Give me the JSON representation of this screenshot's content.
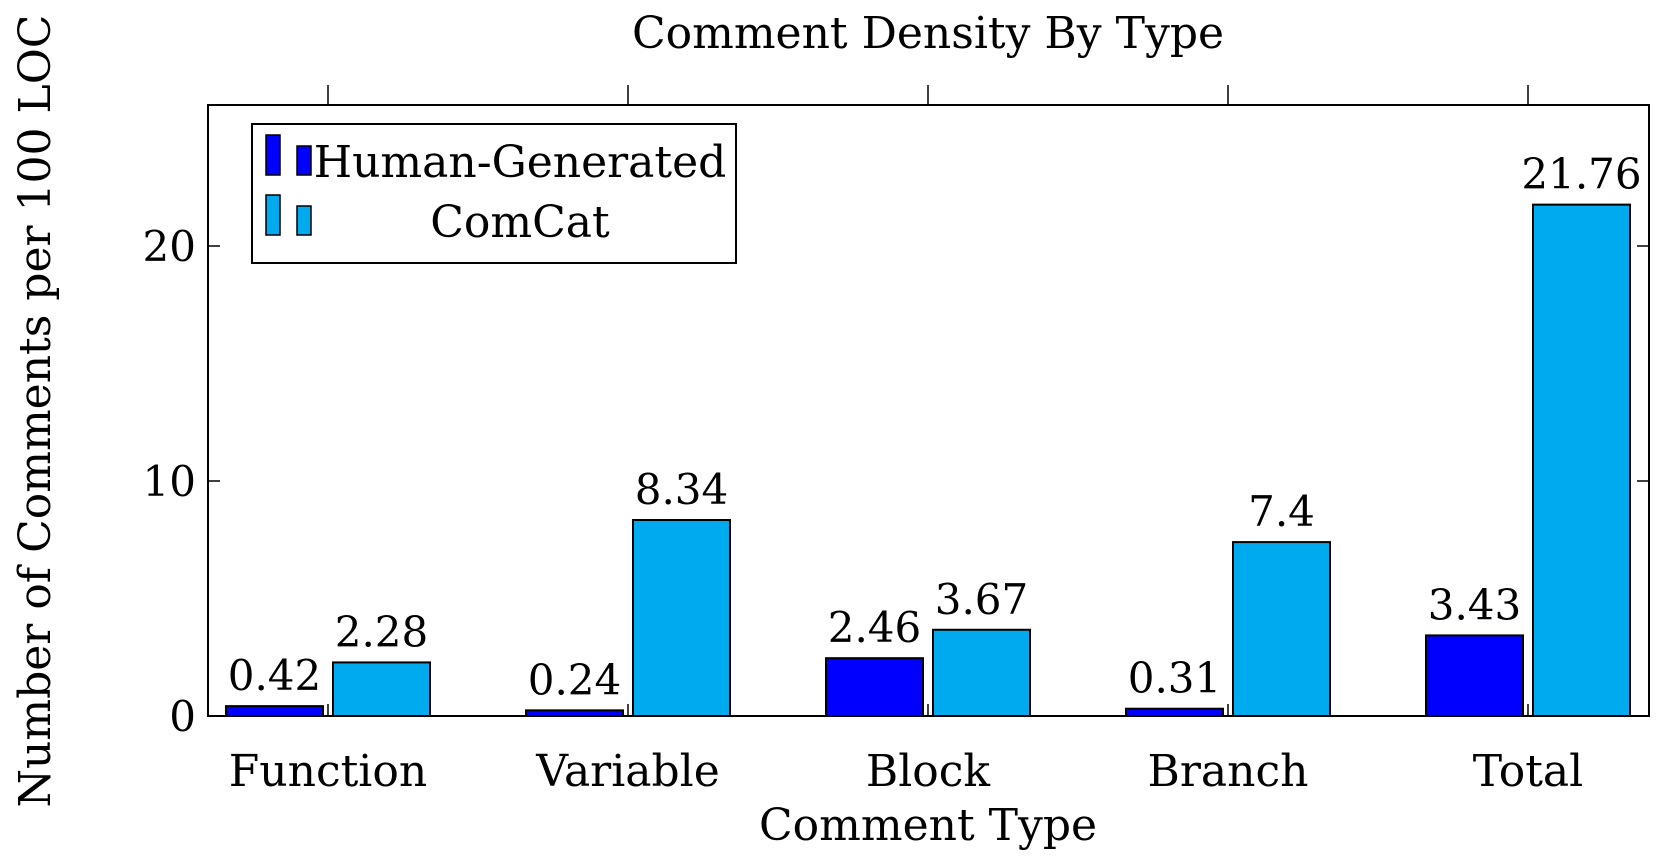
{
  "chart_data": {
    "type": "bar",
    "title": "Comment Density By Type",
    "xlabel": "Comment Type",
    "ylabel": "Number of Comments per 100 LOC",
    "categories": [
      "Function",
      "Variable",
      "Block",
      "Branch",
      "Total"
    ],
    "ylim": [
      0,
      26
    ],
    "yticks": [
      0,
      10,
      20
    ],
    "grid": false,
    "legend_position": "top-left",
    "series": [
      {
        "name": "Human-Generated",
        "color": "#0000ff",
        "values": [
          0.42,
          0.24,
          2.46,
          0.31,
          3.43
        ]
      },
      {
        "name": "ComCat",
        "color": "#00aaee",
        "values": [
          2.28,
          8.34,
          3.67,
          7.4,
          21.76
        ]
      }
    ]
  }
}
